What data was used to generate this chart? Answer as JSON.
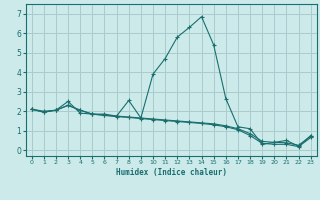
{
  "xlabel": "Humidex (Indice chaleur)",
  "bg_color": "#cceaea",
  "grid_color": "#aacccc",
  "line_color": "#1a6e6e",
  "xlim": [
    -0.5,
    23.5
  ],
  "ylim": [
    -0.3,
    7.5
  ],
  "xticks": [
    0,
    1,
    2,
    3,
    4,
    5,
    6,
    7,
    8,
    9,
    10,
    11,
    12,
    13,
    14,
    15,
    16,
    17,
    18,
    19,
    20,
    21,
    22,
    23
  ],
  "yticks": [
    0,
    1,
    2,
    3,
    4,
    5,
    6,
    7
  ],
  "line1_x": [
    0,
    1,
    2,
    3,
    4,
    5,
    6,
    7,
    8,
    9,
    10,
    11,
    12,
    13,
    14,
    15,
    16,
    17,
    18,
    19,
    20,
    21,
    22,
    23
  ],
  "line1_y": [
    2.1,
    2.0,
    2.05,
    2.5,
    1.9,
    1.85,
    1.85,
    1.75,
    2.55,
    1.65,
    3.9,
    4.7,
    5.8,
    6.3,
    6.85,
    5.4,
    2.65,
    1.2,
    1.1,
    0.3,
    0.4,
    0.5,
    0.2,
    0.75
  ],
  "line2_x": [
    0,
    1,
    2,
    3,
    4,
    5,
    6,
    7,
    8,
    9,
    10,
    11,
    12,
    13,
    14,
    15,
    16,
    17,
    18,
    19,
    20,
    21,
    22,
    23
  ],
  "line2_y": [
    2.1,
    1.95,
    2.05,
    2.3,
    2.05,
    1.85,
    1.8,
    1.75,
    1.7,
    1.65,
    1.6,
    1.55,
    1.5,
    1.45,
    1.4,
    1.35,
    1.25,
    1.1,
    0.85,
    0.45,
    0.4,
    0.38,
    0.25,
    0.72
  ],
  "line3_x": [
    0,
    1,
    2,
    3,
    4,
    5,
    6,
    7,
    8,
    9,
    10,
    11,
    12,
    13,
    14,
    15,
    16,
    17,
    18,
    19,
    20,
    21,
    22,
    23
  ],
  "line3_y": [
    2.1,
    1.95,
    2.05,
    2.3,
    2.05,
    1.85,
    1.78,
    1.72,
    1.68,
    1.62,
    1.57,
    1.52,
    1.47,
    1.42,
    1.37,
    1.3,
    1.2,
    1.05,
    0.75,
    0.35,
    0.3,
    0.3,
    0.18,
    0.65
  ]
}
